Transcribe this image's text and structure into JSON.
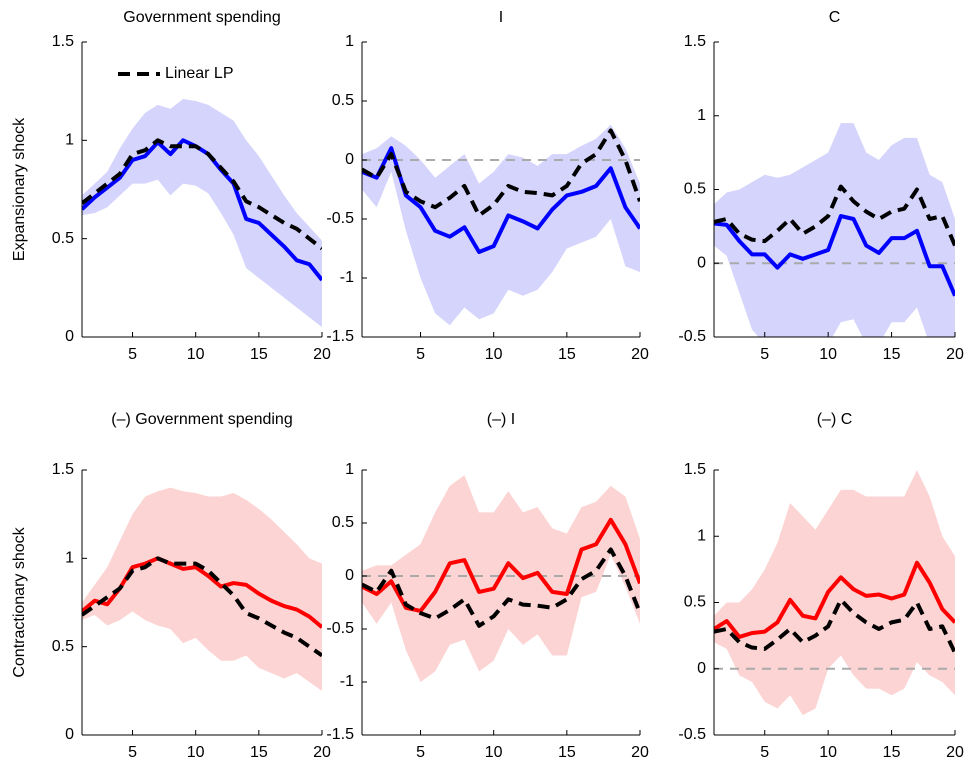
{
  "chart_data": [
    {
      "type": "line",
      "title": "Government spending",
      "ylabel": "Expansionary shock",
      "x": [
        1,
        2,
        3,
        4,
        5,
        6,
        7,
        8,
        9,
        10,
        11,
        12,
        13,
        14,
        15,
        16,
        17,
        18,
        19,
        20
      ],
      "xlim": [
        1,
        20
      ],
      "xticks": [
        5,
        10,
        15,
        20
      ],
      "ylim": [
        0,
        1.5
      ],
      "yticks": [
        0,
        0.5,
        1,
        1.5
      ],
      "band": {
        "color": "#d4d4fc",
        "upper": [
          0.72,
          0.78,
          0.84,
          0.96,
          1.06,
          1.14,
          1.18,
          1.16,
          1.21,
          1.2,
          1.18,
          1.14,
          1.1,
          1.0,
          0.92,
          0.82,
          0.72,
          0.63,
          0.56,
          0.49
        ],
        "lower": [
          0.62,
          0.63,
          0.66,
          0.72,
          0.78,
          0.78,
          0.8,
          0.72,
          0.78,
          0.77,
          0.73,
          0.63,
          0.52,
          0.35,
          0.3,
          0.25,
          0.2,
          0.15,
          0.1,
          0.05
        ]
      },
      "series": [
        {
          "color": "#0000ff",
          "values": [
            0.65,
            0.71,
            0.76,
            0.81,
            0.9,
            0.92,
            0.99,
            0.93,
            1.0,
            0.97,
            0.93,
            0.85,
            0.78,
            0.6,
            0.58,
            0.52,
            0.46,
            0.39,
            0.37,
            0.29
          ]
        },
        {
          "name": "Linear LP",
          "color": "#000000",
          "dash": true,
          "values": [
            0.68,
            0.73,
            0.78,
            0.83,
            0.93,
            0.95,
            1.0,
            0.97,
            0.97,
            0.97,
            0.93,
            0.86,
            0.79,
            0.69,
            0.66,
            0.62,
            0.58,
            0.55,
            0.5,
            0.45
          ]
        }
      ]
    },
    {
      "type": "line",
      "title": "I",
      "x": [
        1,
        2,
        3,
        4,
        5,
        6,
        7,
        8,
        9,
        10,
        11,
        12,
        13,
        14,
        15,
        16,
        17,
        18,
        19,
        20
      ],
      "xlim": [
        1,
        20
      ],
      "xticks": [
        5,
        10,
        15,
        20
      ],
      "ylim": [
        -1.5,
        1
      ],
      "yticks": [
        -1.5,
        -1,
        -0.5,
        0,
        0.5,
        1
      ],
      "reference_line": 0,
      "band": {
        "color": "#d4d4fc",
        "upper": [
          0.05,
          0.1,
          0.2,
          0.12,
          0.0,
          -0.15,
          -0.05,
          0.05,
          -0.2,
          -0.1,
          0.05,
          0.02,
          -0.05,
          0.05,
          0.05,
          0.12,
          0.18,
          0.3,
          0.1,
          -0.2
        ],
        "lower": [
          -0.25,
          -0.4,
          -0.1,
          -0.6,
          -1.0,
          -1.3,
          -1.4,
          -1.25,
          -1.35,
          -1.3,
          -1.1,
          -1.15,
          -1.1,
          -0.95,
          -0.75,
          -0.7,
          -0.65,
          -0.5,
          -0.9,
          -0.95
        ]
      },
      "series": [
        {
          "color": "#0000ff",
          "values": [
            -0.1,
            -0.15,
            0.1,
            -0.3,
            -0.4,
            -0.6,
            -0.65,
            -0.57,
            -0.78,
            -0.73,
            -0.47,
            -0.52,
            -0.58,
            -0.42,
            -0.3,
            -0.27,
            -0.22,
            -0.07,
            -0.4,
            -0.58
          ]
        },
        {
          "color": "#000000",
          "dash": true,
          "values": [
            -0.08,
            -0.15,
            0.05,
            -0.27,
            -0.35,
            -0.4,
            -0.32,
            -0.22,
            -0.47,
            -0.38,
            -0.22,
            -0.27,
            -0.28,
            -0.3,
            -0.22,
            -0.03,
            0.05,
            0.25,
            0.0,
            -0.35
          ]
        }
      ]
    },
    {
      "type": "line",
      "title": "C",
      "x": [
        1,
        2,
        3,
        4,
        5,
        6,
        7,
        8,
        9,
        10,
        11,
        12,
        13,
        14,
        15,
        16,
        17,
        18,
        19,
        20
      ],
      "xlim": [
        1,
        20
      ],
      "xticks": [
        5,
        10,
        15,
        20
      ],
      "ylim": [
        -0.5,
        1.5
      ],
      "yticks": [
        -0.5,
        0,
        0.5,
        1,
        1.5
      ],
      "reference_line": 0,
      "band": {
        "color": "#d4d4fc",
        "upper": [
          0.4,
          0.48,
          0.5,
          0.55,
          0.6,
          0.58,
          0.6,
          0.65,
          0.7,
          0.75,
          0.95,
          0.95,
          0.75,
          0.7,
          0.8,
          0.85,
          0.85,
          0.6,
          0.55,
          0.3
        ],
        "lower": [
          0.12,
          0.05,
          -0.2,
          -0.45,
          -0.55,
          -0.6,
          -0.6,
          -0.55,
          -0.6,
          -0.55,
          -0.4,
          -0.38,
          -0.55,
          -0.55,
          -0.4,
          -0.4,
          -0.3,
          -0.55,
          -0.6,
          -0.65
        ]
      },
      "series": [
        {
          "color": "#0000ff",
          "values": [
            0.27,
            0.26,
            0.15,
            0.06,
            0.06,
            -0.03,
            0.06,
            0.03,
            0.06,
            0.09,
            0.32,
            0.3,
            0.12,
            0.07,
            0.17,
            0.17,
            0.22,
            -0.02,
            -0.02,
            -0.22
          ]
        },
        {
          "color": "#000000",
          "dash": true,
          "values": [
            0.28,
            0.3,
            0.2,
            0.16,
            0.15,
            0.22,
            0.3,
            0.2,
            0.25,
            0.32,
            0.52,
            0.42,
            0.35,
            0.3,
            0.35,
            0.37,
            0.5,
            0.3,
            0.32,
            0.12
          ]
        }
      ]
    },
    {
      "type": "line",
      "title": "(–) Government spending",
      "ylabel": "Contractionary shock",
      "x": [
        1,
        2,
        3,
        4,
        5,
        6,
        7,
        8,
        9,
        10,
        11,
        12,
        13,
        14,
        15,
        16,
        17,
        18,
        19,
        20
      ],
      "xlim": [
        1,
        20
      ],
      "xticks": [
        5,
        10,
        15,
        20
      ],
      "ylim": [
        0,
        1.5
      ],
      "yticks": [
        0,
        0.5,
        1,
        1.5
      ],
      "band": {
        "color": "#fcd4d4",
        "upper": [
          0.75,
          0.85,
          0.95,
          1.1,
          1.25,
          1.35,
          1.38,
          1.4,
          1.38,
          1.37,
          1.35,
          1.35,
          1.37,
          1.33,
          1.28,
          1.22,
          1.15,
          1.08,
          1.0,
          0.97
        ],
        "lower": [
          0.65,
          0.68,
          0.62,
          0.65,
          0.7,
          0.65,
          0.62,
          0.6,
          0.52,
          0.55,
          0.48,
          0.42,
          0.42,
          0.45,
          0.38,
          0.35,
          0.32,
          0.35,
          0.3,
          0.25
        ]
      },
      "series": [
        {
          "color": "#ff0000",
          "values": [
            0.7,
            0.76,
            0.74,
            0.83,
            0.95,
            0.97,
            1.0,
            0.97,
            0.94,
            0.95,
            0.9,
            0.84,
            0.86,
            0.85,
            0.8,
            0.76,
            0.73,
            0.71,
            0.67,
            0.61
          ]
        },
        {
          "color": "#000000",
          "dash": true,
          "values": [
            0.68,
            0.73,
            0.78,
            0.83,
            0.93,
            0.95,
            1.0,
            0.97,
            0.97,
            0.97,
            0.93,
            0.86,
            0.79,
            0.69,
            0.66,
            0.62,
            0.58,
            0.55,
            0.5,
            0.45
          ]
        }
      ]
    },
    {
      "type": "line",
      "title": "(–) I",
      "x": [
        1,
        2,
        3,
        4,
        5,
        6,
        7,
        8,
        9,
        10,
        11,
        12,
        13,
        14,
        15,
        16,
        17,
        18,
        19,
        20
      ],
      "xlim": [
        1,
        20
      ],
      "xticks": [
        5,
        10,
        15,
        20
      ],
      "ylim": [
        -1.5,
        1
      ],
      "yticks": [
        -1.5,
        -1,
        -0.5,
        0,
        0.5,
        1
      ],
      "reference_line": 0,
      "band": {
        "color": "#fcd4d4",
        "upper": [
          0.05,
          0.1,
          0.1,
          0.2,
          0.3,
          0.6,
          0.85,
          0.95,
          0.6,
          0.6,
          0.8,
          0.6,
          0.65,
          0.45,
          0.4,
          0.65,
          0.7,
          0.85,
          0.75,
          0.35
        ],
        "lower": [
          -0.25,
          -0.45,
          -0.25,
          -0.7,
          -1.0,
          -0.9,
          -0.65,
          -0.6,
          -0.9,
          -0.8,
          -0.5,
          -0.65,
          -0.55,
          -0.75,
          -0.75,
          -0.2,
          -0.15,
          0.2,
          -0.1,
          -0.45
        ]
      },
      "series": [
        {
          "color": "#ff0000",
          "values": [
            -0.1,
            -0.17,
            -0.05,
            -0.3,
            -0.33,
            -0.15,
            0.12,
            0.15,
            -0.15,
            -0.12,
            0.12,
            -0.02,
            0.03,
            -0.15,
            -0.17,
            0.25,
            0.3,
            0.53,
            0.3,
            -0.07
          ]
        },
        {
          "color": "#000000",
          "dash": true,
          "values": [
            -0.08,
            -0.15,
            0.05,
            -0.27,
            -0.35,
            -0.4,
            -0.32,
            -0.22,
            -0.47,
            -0.38,
            -0.22,
            -0.27,
            -0.28,
            -0.3,
            -0.22,
            -0.03,
            0.05,
            0.25,
            0.0,
            -0.35
          ]
        }
      ]
    },
    {
      "type": "line",
      "title": "(–) C",
      "x": [
        1,
        2,
        3,
        4,
        5,
        6,
        7,
        8,
        9,
        10,
        11,
        12,
        13,
        14,
        15,
        16,
        17,
        18,
        19,
        20
      ],
      "xlim": [
        1,
        20
      ],
      "xticks": [
        5,
        10,
        15,
        20
      ],
      "ylim": [
        -0.5,
        1.5
      ],
      "yticks": [
        -0.5,
        0,
        0.5,
        1,
        1.5
      ],
      "reference_line": 0,
      "band": {
        "color": "#fcd4d4",
        "upper": [
          0.4,
          0.5,
          0.5,
          0.6,
          0.75,
          0.95,
          1.25,
          1.15,
          1.05,
          1.2,
          1.35,
          1.35,
          1.3,
          1.3,
          1.3,
          1.3,
          1.5,
          1.3,
          1.0,
          0.85
        ],
        "lower": [
          0.2,
          0.15,
          -0.05,
          -0.1,
          -0.25,
          -0.3,
          -0.2,
          -0.35,
          -0.3,
          0.0,
          0.1,
          -0.05,
          -0.15,
          -0.15,
          -0.2,
          -0.15,
          0.05,
          -0.05,
          -0.1,
          -0.2
        ]
      },
      "series": [
        {
          "color": "#ff0000",
          "values": [
            0.3,
            0.36,
            0.24,
            0.27,
            0.28,
            0.35,
            0.52,
            0.4,
            0.38,
            0.58,
            0.69,
            0.6,
            0.55,
            0.56,
            0.53,
            0.56,
            0.8,
            0.65,
            0.45,
            0.35
          ]
        },
        {
          "color": "#000000",
          "dash": true,
          "values": [
            0.28,
            0.3,
            0.2,
            0.16,
            0.15,
            0.22,
            0.3,
            0.2,
            0.25,
            0.32,
            0.52,
            0.42,
            0.35,
            0.3,
            0.35,
            0.37,
            0.5,
            0.3,
            0.32,
            0.12
          ]
        }
      ]
    }
  ]
}
